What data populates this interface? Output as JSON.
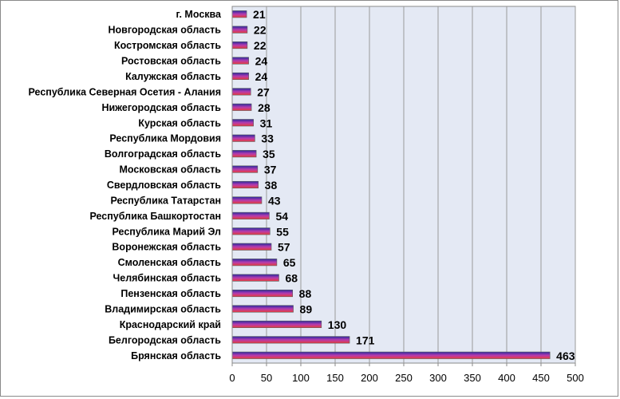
{
  "chart_data": {
    "type": "bar",
    "orientation": "horizontal",
    "categories": [
      "г. Москва",
      "Новгородская область",
      "Костромская область",
      "Ростовская область",
      "Калужская область",
      "Республика Северная Осетия - Алания",
      "Нижегородская область",
      "Курская область",
      "Республика Мордовия",
      "Волгоградская область",
      "Московская область",
      "Свердловская область",
      "Республика Татарстан",
      "Республика Башкортостан",
      "Республика Марий Эл",
      "Воронежская область",
      "Смоленская область",
      "Челябинская область",
      "Пензенская область",
      "Владимирская область",
      "Краснодарский край",
      "Белгородская область",
      "Брянская область"
    ],
    "values": [
      21,
      22,
      22,
      24,
      24,
      27,
      28,
      31,
      33,
      35,
      37,
      38,
      43,
      54,
      55,
      57,
      65,
      68,
      88,
      89,
      130,
      171,
      463
    ],
    "xlim": [
      0,
      500
    ],
    "xticks": [
      0,
      50,
      100,
      150,
      200,
      250,
      300,
      350,
      400,
      450,
      500
    ],
    "title": "",
    "xlabel": "",
    "ylabel": "",
    "grid": "vertical",
    "legend": "none",
    "colors": {
      "plot_background": "#e4e9f4",
      "bar_top": "#2a2a9e",
      "bar_middle": "#b43bb0",
      "bar_bottom": "#e83c3c",
      "bar_outline": "#5a5a5a",
      "grid": "#9a9a9a"
    }
  }
}
